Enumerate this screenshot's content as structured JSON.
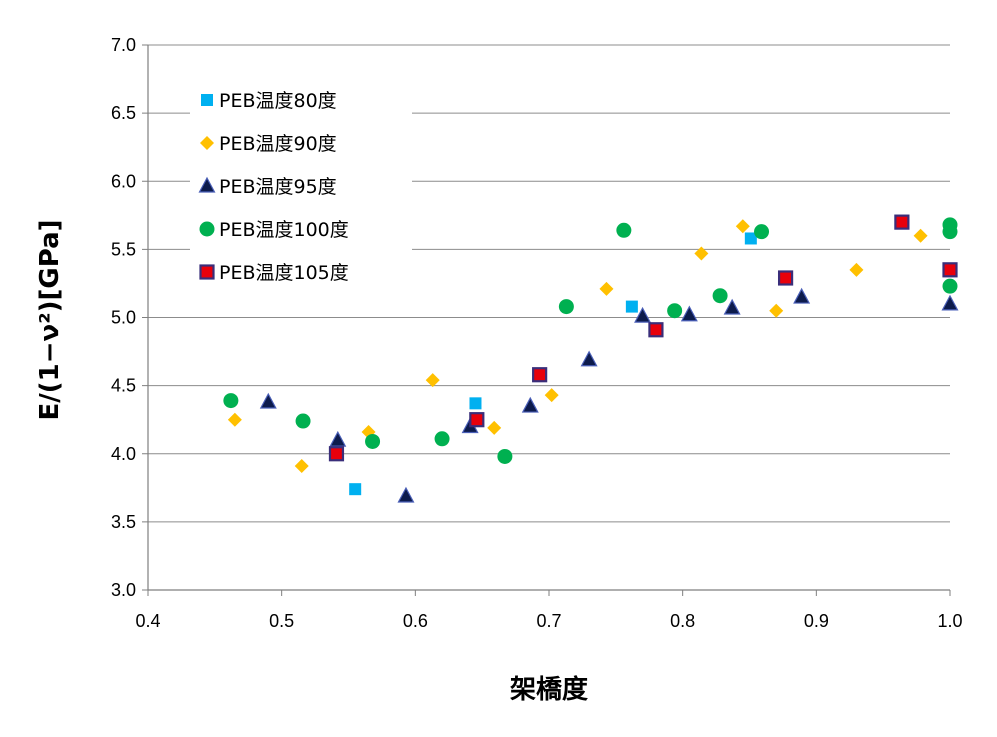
{
  "chart_data": {
    "type": "scatter",
    "xlabel": "架橋度",
    "ylabel": "E/(1−ν²)[GPa]",
    "xlim": [
      0.4,
      1.0
    ],
    "ylim": [
      3.0,
      7.0
    ],
    "xticks": [
      "0.4",
      "0.5",
      "0.6",
      "0.7",
      "0.8",
      "0.9",
      "1.0"
    ],
    "yticks": [
      "3.0",
      "3.5",
      "4.0",
      "4.5",
      "5.0",
      "5.5",
      "6.0",
      "6.5",
      "7.0"
    ],
    "grid": "horizontal",
    "legend_position": "top-left",
    "series": [
      {
        "name": "PEB温度80度",
        "marker": "square",
        "color": "#00B0F0",
        "x": [
          0.555,
          0.645,
          0.762,
          0.851
        ],
        "y": [
          3.74,
          4.37,
          5.08,
          5.58
        ]
      },
      {
        "name": "PEB温度90度",
        "marker": "diamond",
        "color": "#FFC000",
        "x": [
          0.465,
          0.515,
          0.565,
          0.613,
          0.659,
          0.702,
          0.743,
          0.814,
          0.845,
          0.87,
          0.93,
          0.978
        ],
        "y": [
          4.25,
          3.91,
          4.16,
          4.54,
          4.19,
          4.43,
          5.21,
          5.47,
          5.67,
          5.05,
          5.35,
          5.6
        ]
      },
      {
        "name": "PEB温度95度",
        "marker": "triangle",
        "color": "#0D1B4C",
        "x": [
          0.49,
          0.542,
          0.593,
          0.641,
          0.686,
          0.73,
          0.77,
          0.805,
          0.837,
          0.889,
          1.0
        ],
        "y": [
          4.38,
          4.1,
          3.69,
          4.2,
          4.35,
          4.69,
          5.01,
          5.02,
          5.07,
          5.15,
          5.1
        ]
      },
      {
        "name": "PEB温度100度",
        "marker": "circle",
        "color": "#00B050",
        "x": [
          0.462,
          0.516,
          0.568,
          0.62,
          0.667,
          0.713,
          0.756,
          0.794,
          0.828,
          0.859,
          1.0,
          1.0,
          1.0
        ],
        "y": [
          4.39,
          4.24,
          4.09,
          4.11,
          3.98,
          5.08,
          5.64,
          5.05,
          5.16,
          5.63,
          5.68,
          5.63,
          5.23
        ]
      },
      {
        "name": "PEB温度105度",
        "marker": "square-outline",
        "color": "#E8000B",
        "stroke": "#3A2E7A",
        "x": [
          0.541,
          0.646,
          0.693,
          0.78,
          0.877,
          0.964,
          1.0
        ],
        "y": [
          4.0,
          4.25,
          4.58,
          4.91,
          5.29,
          5.7,
          5.35
        ]
      }
    ]
  }
}
